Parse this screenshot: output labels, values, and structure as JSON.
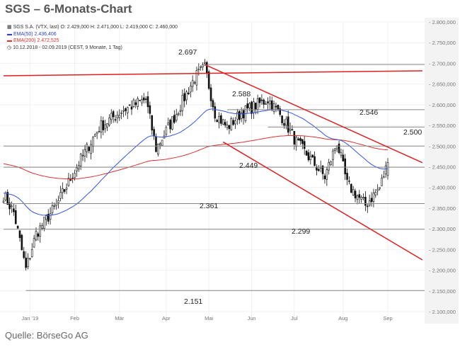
{
  "title": "SGS – 6-Monats-Chart",
  "legend": {
    "instrument": "SGS S.A. (VTX, last)  O: 2.429,000  H: 2.471,000  L: 2.419,000  C: 2.460,000",
    "ema50": "EMA(50)  2.436,406",
    "ema200": "EMA(200)  2.472,525",
    "range": "10.12.2018 - 02.09.2019   (CEST, 9 Monate, 1 Tag)"
  },
  "source": "Quelle: BörseGo AG",
  "colors": {
    "ema50": "#3355dd",
    "ema200": "#e03030",
    "trend": "#e02020",
    "level": "#888888"
  },
  "chart_data": {
    "type": "candlestick",
    "title": "SGS – 6-Monats-Chart",
    "ylim": [
      2100000,
      2800000
    ],
    "y_ticks": [
      "2.100,000",
      "2.150,000",
      "2.200,000",
      "2.250,000",
      "2.300,000",
      "2.350,000",
      "2.400,000",
      "2.450,000",
      "2.500,000",
      "2.550,000",
      "2.600,000",
      "2.650,000",
      "2.700,000",
      "2.750,000",
      "2.800,000"
    ],
    "y_tick_values": [
      2100000,
      2150000,
      2200000,
      2250000,
      2300000,
      2350000,
      2400000,
      2450000,
      2500000,
      2550000,
      2600000,
      2650000,
      2700000,
      2750000,
      2800000
    ],
    "x_ticks": [
      {
        "label": "Jan '19",
        "t": 13
      },
      {
        "label": "Feb",
        "t": 35
      },
      {
        "label": "Mär",
        "t": 57
      },
      {
        "label": "Apr",
        "t": 80
      },
      {
        "label": "Mai",
        "t": 101
      },
      {
        "label": "Jun",
        "t": 122
      },
      {
        "label": "Jul",
        "t": 143
      },
      {
        "label": "Aug",
        "t": 167
      },
      {
        "label": "Sep",
        "t": 189
      }
    ],
    "trading_days": 190,
    "close_keypoints": [
      [
        0,
        2382000
      ],
      [
        5,
        2340000
      ],
      [
        11,
        2202000
      ],
      [
        16,
        2288000
      ],
      [
        26,
        2357000
      ],
      [
        37,
        2459000
      ],
      [
        47,
        2545000
      ],
      [
        59,
        2588000
      ],
      [
        70,
        2613000
      ],
      [
        75,
        2494000
      ],
      [
        84,
        2570000
      ],
      [
        94,
        2665000
      ],
      [
        99,
        2690000
      ],
      [
        104,
        2580000
      ],
      [
        110,
        2545000
      ],
      [
        117,
        2580000
      ],
      [
        130,
        2613000
      ],
      [
        137,
        2570000
      ],
      [
        144,
        2510000
      ],
      [
        151,
        2468000
      ],
      [
        158,
        2425000
      ],
      [
        164,
        2510000
      ],
      [
        169,
        2408000
      ],
      [
        178,
        2357000
      ],
      [
        185,
        2400000
      ],
      [
        189,
        2460000
      ]
    ],
    "levels": [
      {
        "value": 2697000,
        "label": "2.697",
        "from_t": 100
      },
      {
        "value": 2588000,
        "label": "2.588",
        "from_t": 110
      },
      {
        "value": 2546000,
        "label": "2.546",
        "from_t": 130
      },
      {
        "value": 2500000,
        "label": "2.500",
        "from_t": 0
      },
      {
        "value": 2449000,
        "label": "2.449",
        "from_t": 0
      },
      {
        "value": 2361000,
        "label": "2.361",
        "from_t": 0
      },
      {
        "value": 2299000,
        "label": "2.299",
        "from_t": 0
      },
      {
        "value": 2151000,
        "label": "2.151",
        "from_t": 11
      }
    ],
    "trendlines": [
      {
        "name": "resistance",
        "p1": [
          0,
          2670000
        ],
        "p2": [
          206,
          2682000
        ]
      },
      {
        "name": "channel-top",
        "p1": [
          99,
          2697000
        ],
        "p2": [
          206,
          2460000
        ]
      },
      {
        "name": "channel-bottom",
        "p1": [
          108,
          2510000
        ],
        "p2": [
          206,
          2225000
        ]
      }
    ],
    "ema50_seed": 2387000,
    "ema200_seed": 2458000
  }
}
